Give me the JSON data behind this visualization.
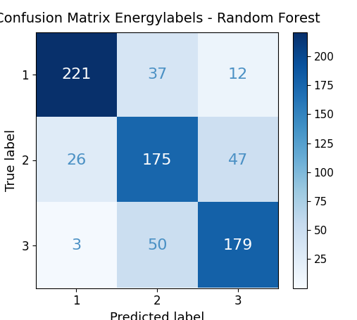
{
  "title": "Confusion Matrix Energylabels - Random Forest",
  "matrix": [
    [
      221,
      37,
      12
    ],
    [
      26,
      175,
      47
    ],
    [
      3,
      50,
      179
    ]
  ],
  "xlabel": "Predicted label",
  "ylabel": "True label",
  "tick_labels": [
    "1",
    "2",
    "3"
  ],
  "cmap": "Blues",
  "vmin": 0,
  "vmax": 221,
  "colorbar_ticks": [
    25,
    50,
    75,
    100,
    125,
    150,
    175,
    200
  ],
  "text_color_threshold": 100,
  "text_color_dark": "white",
  "text_color_light": "#4a90c4",
  "title_fontsize": 14,
  "label_fontsize": 13,
  "tick_fontsize": 12,
  "value_fontsize": 16
}
